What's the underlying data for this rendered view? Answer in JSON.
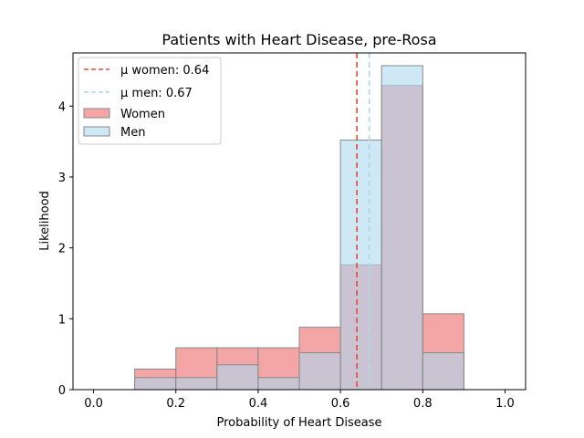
{
  "chart_data": {
    "type": "histogram",
    "title": "Patients with Heart Disease, pre-Rosa",
    "xlabel": "Probability of Heart Disease",
    "ylabel": "Likelihood",
    "xlim": [
      -0.05,
      1.05
    ],
    "ylim": [
      0,
      4.75
    ],
    "xticks": [
      0.0,
      0.2,
      0.4,
      0.6,
      0.8,
      1.0
    ],
    "xtick_labels": [
      "0.0",
      "0.2",
      "0.4",
      "0.6",
      "0.8",
      "1.0"
    ],
    "yticks": [
      0,
      1,
      2,
      3,
      4
    ],
    "ytick_labels": [
      "0",
      "1",
      "2",
      "3",
      "4"
    ],
    "bins": [
      0.0,
      0.1,
      0.2,
      0.3,
      0.4,
      0.5,
      0.6,
      0.7,
      0.8,
      0.9,
      1.0
    ],
    "series": [
      {
        "name": "Women",
        "legend_label": "Women",
        "color": "#f08080",
        "alpha": 0.7,
        "values": [
          0,
          0.29,
          0.59,
          0.59,
          0.59,
          0.88,
          1.76,
          4.29,
          1.07,
          0
        ]
      },
      {
        "name": "Men",
        "legend_label": "Men",
        "color": "#add8f0",
        "alpha": 0.6,
        "values": [
          0,
          0.17,
          0.17,
          0.35,
          0.17,
          0.52,
          3.52,
          4.57,
          0.52,
          0
        ]
      }
    ],
    "mean_lines": [
      {
        "name": "women",
        "legend_label": "μ women: 0.64",
        "value": 0.64,
        "color": "#e8473b"
      },
      {
        "name": "men",
        "legend_label": "μ men: 0.67",
        "value": 0.67,
        "color": "#a8d6ee"
      }
    ],
    "legend_position": "upper-left"
  }
}
